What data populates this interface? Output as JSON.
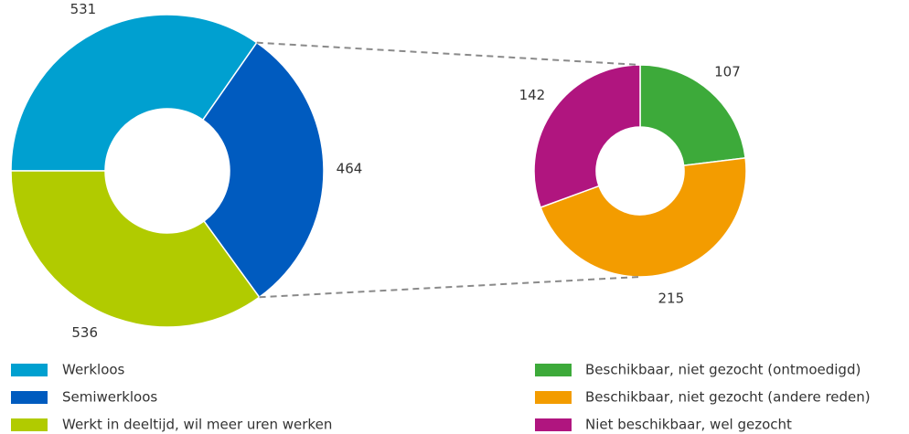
{
  "chart_data": [
    {
      "type": "donut",
      "categories": [
        "Werkloos",
        "Semiwerkloos",
        "Werkt in deeltijd, wil meer uren werken"
      ],
      "values": [
        531,
        464,
        536
      ],
      "colors": [
        "#00a0d0",
        "#005bbf",
        "#b1cb00"
      ]
    },
    {
      "type": "donut",
      "categories": [
        "Beschikbaar, niet gezocht (ontmoedigd)",
        "Beschikbaar, niet gezocht (andere reden)",
        "Niet beschikbaar, wel gezocht"
      ],
      "values": [
        107,
        215,
        142
      ],
      "colors": [
        "#3daa3a",
        "#f39c00",
        "#b0157f"
      ]
    }
  ]
}
